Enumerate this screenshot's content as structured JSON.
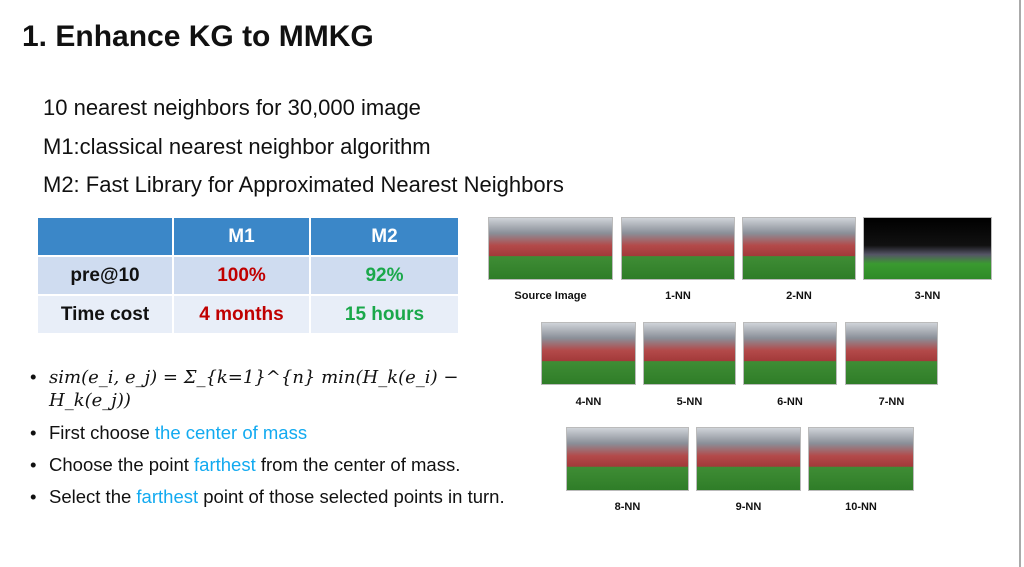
{
  "title": "1. Enhance KG to MMKG",
  "lines": [
    "10 nearest neighbors for 30,000 image",
    "M1:classical nearest neighbor algorithm",
    "M2: Fast Library for Approximated Nearest Neighbors"
  ],
  "table": {
    "headers": [
      "",
      "M1",
      "M2"
    ],
    "rows": [
      {
        "label": "pre@10",
        "m1": "100%",
        "m2": "92%"
      },
      {
        "label": "Time cost",
        "m1": "4 months",
        "m2": "15 hours"
      }
    ]
  },
  "bullets": {
    "formula": "sim(e_i, e_j) = Σ_{k=1}^{n} min(H_k(e_i) − H_k(e_j))",
    "b1": {
      "pre": "First choose ",
      "hl": "the center of mass"
    },
    "b2": {
      "pre": "Choose the point ",
      "hl": "farthest",
      "post": " from the center of mass."
    },
    "b3": {
      "pre": "Select the ",
      "hl": "farthest",
      "post": " point of those selected points in turn."
    }
  },
  "images": [
    "Source Image",
    "1-NN",
    "2-NN",
    "3-NN",
    "4-NN",
    "5-NN",
    "6-NN",
    "7-NN",
    "8-NN",
    "9-NN",
    "10-NN"
  ],
  "colors": {
    "header": "#3b87c8",
    "m1": "#c00000",
    "m2": "#1aa84a",
    "highlight": "#12aaf0"
  }
}
